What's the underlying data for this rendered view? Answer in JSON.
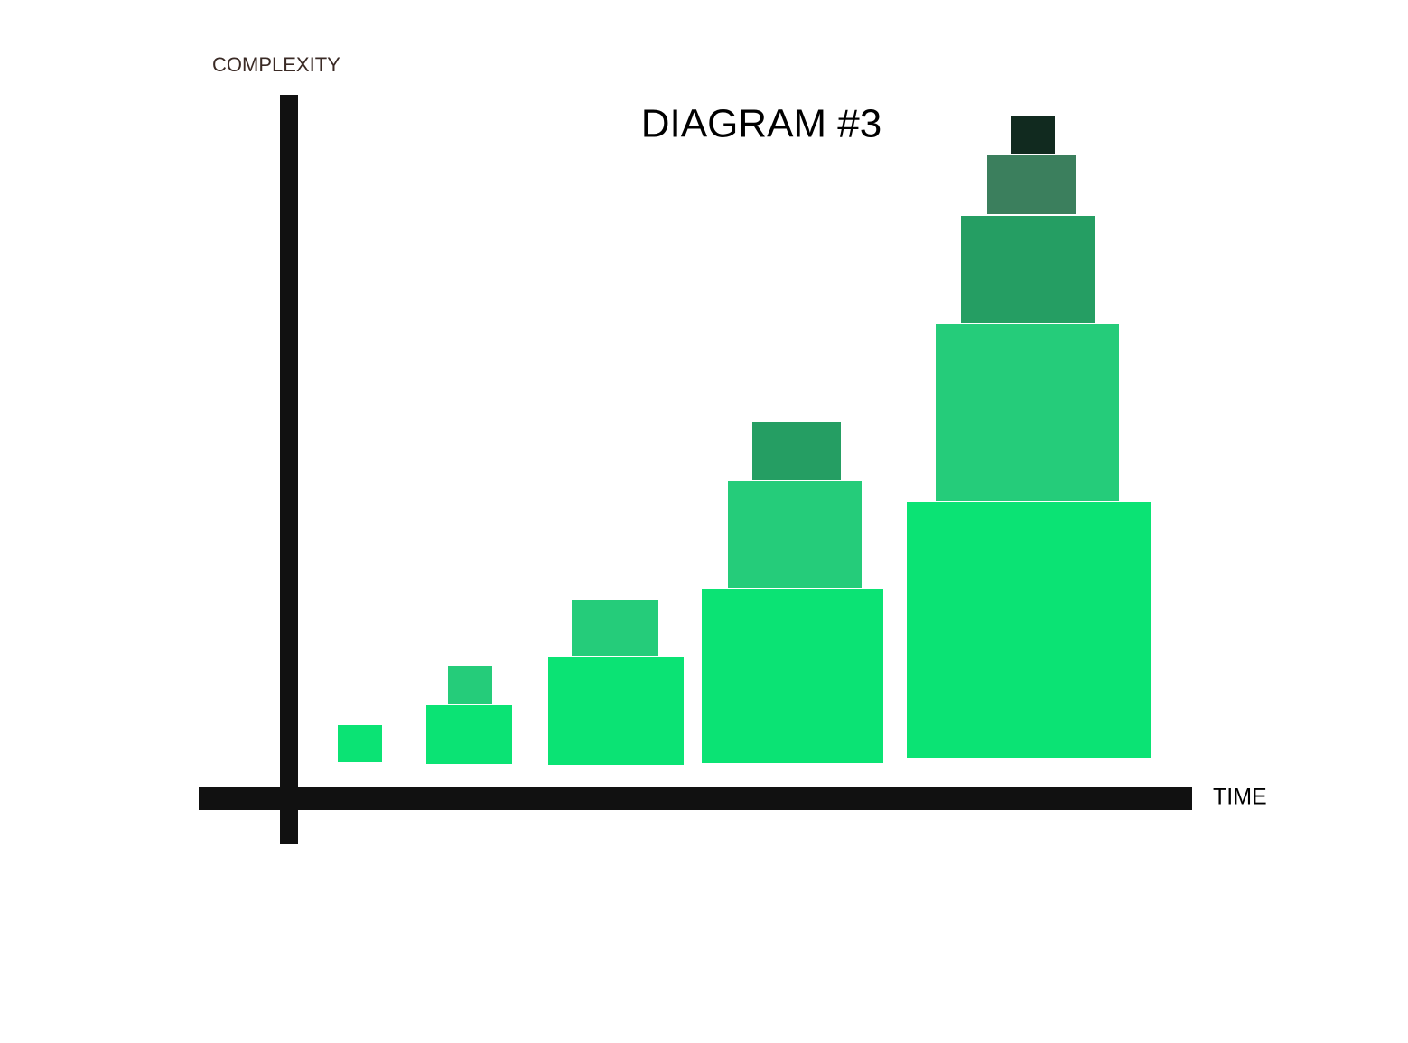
{
  "title": "DIAGRAM #3",
  "y_axis_label": "COMPLEXITY",
  "x_axis_label": "TIME"
}
